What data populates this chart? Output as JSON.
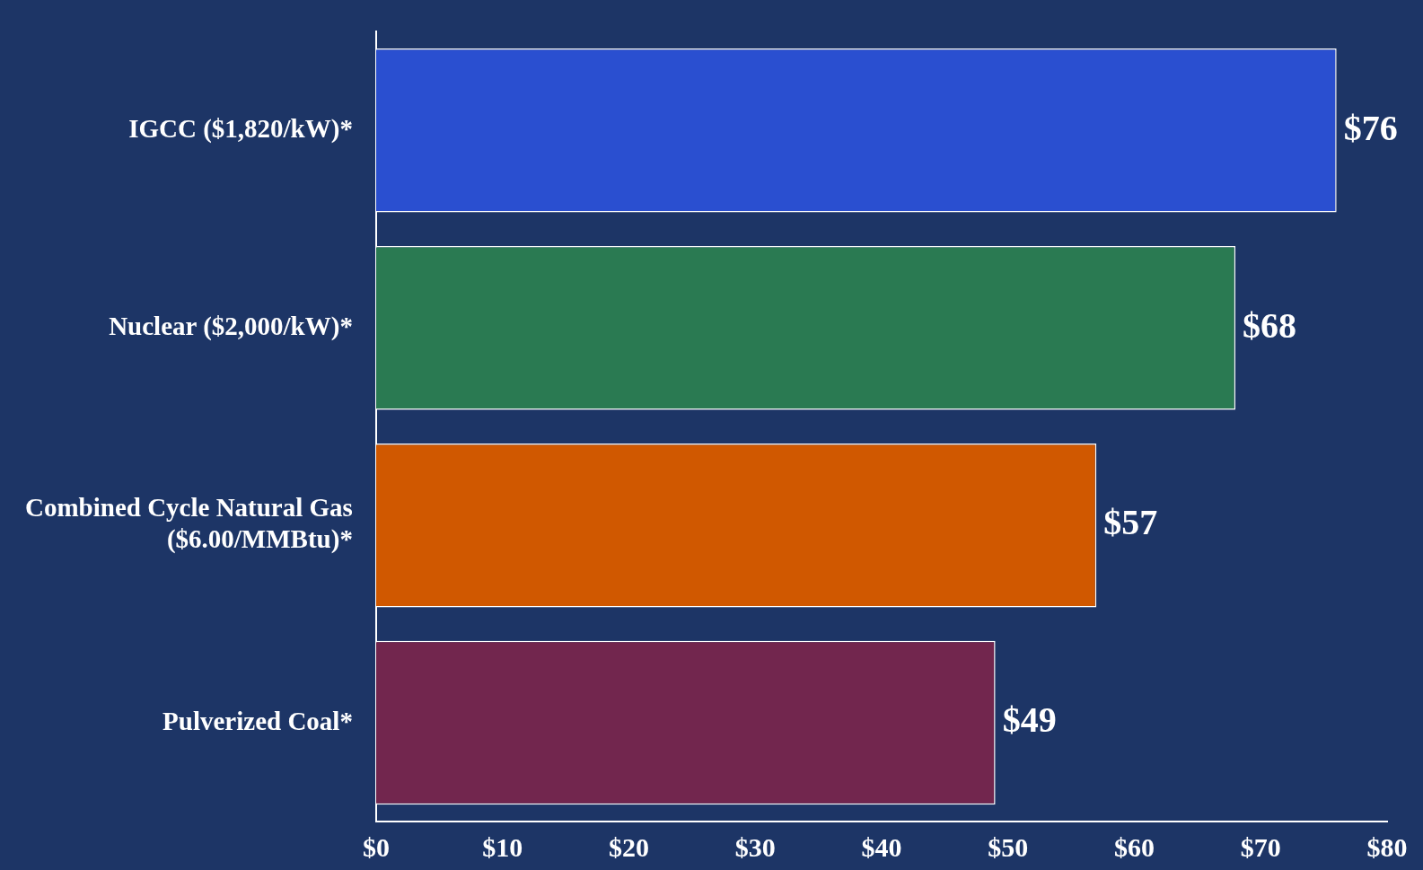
{
  "chart_data": {
    "type": "bar",
    "orientation": "horizontal",
    "categories": [
      "IGCC ($1,820/kW)*",
      "Nuclear ($2,000/kW)*",
      "Combined Cycle Natural Gas ($6.00/MMBtu)*",
      "Pulverized Coal*"
    ],
    "values": [
      76,
      68,
      57,
      49
    ],
    "colors": [
      "#2a4fd0",
      "#2a7a52",
      "#d05800",
      "#72264e"
    ],
    "value_labels": [
      "$76",
      "$68",
      "$57",
      "$49"
    ],
    "xlim": [
      0,
      80
    ],
    "xticks": [
      {
        "value": 0,
        "label": "$0"
      },
      {
        "value": 10,
        "label": "$10"
      },
      {
        "value": 20,
        "label": "$20"
      },
      {
        "value": 30,
        "label": "$30"
      },
      {
        "value": 40,
        "label": "$40"
      },
      {
        "value": 50,
        "label": "$50"
      },
      {
        "value": 60,
        "label": "$60"
      },
      {
        "value": 70,
        "label": "$70"
      },
      {
        "value": 80,
        "label": "$80"
      }
    ],
    "grid": false,
    "legend": false
  }
}
